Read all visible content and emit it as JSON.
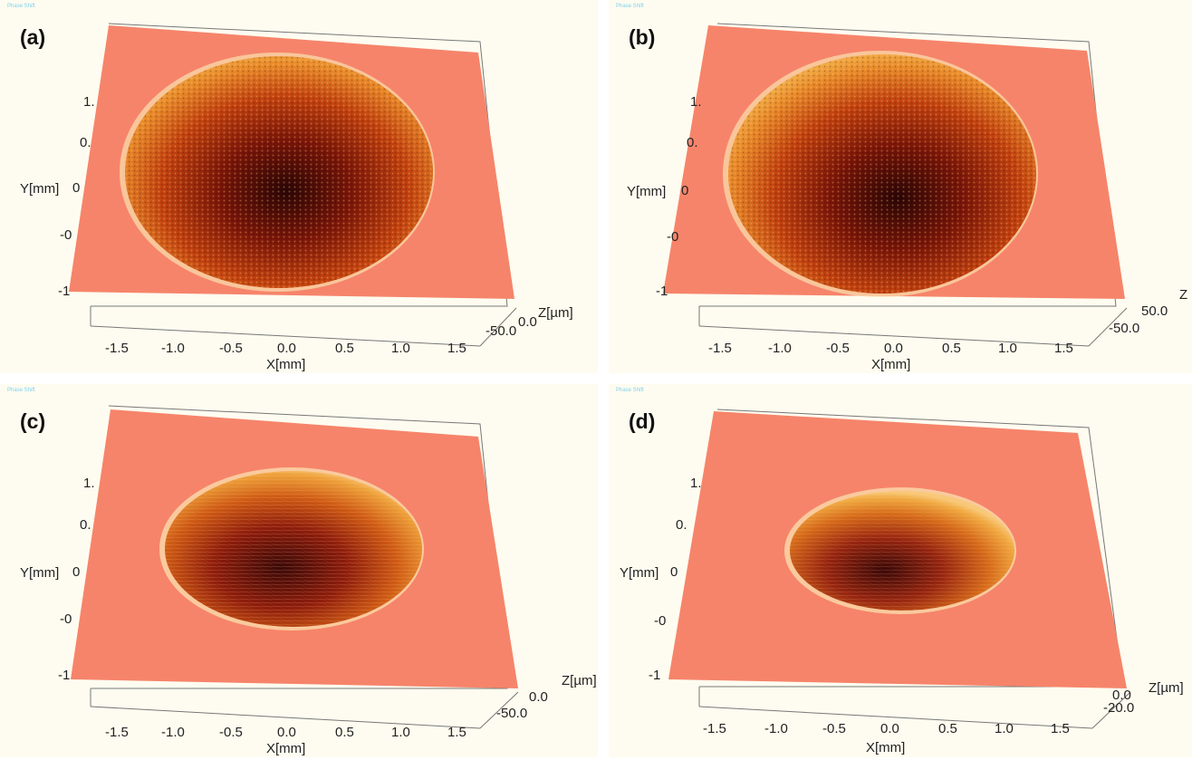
{
  "panels": [
    {
      "id": "a",
      "label": "(a)",
      "tag": "Phase Shift",
      "y_ticks": [
        "1.",
        "0.",
        "0",
        "-0",
        "-1"
      ],
      "y_label": "Y[mm]",
      "x_ticks": [
        "-1.5",
        "-1.0",
        "-0.5",
        "0.0",
        "0.5",
        "1.0",
        "1.5"
      ],
      "x_label": "X[mm]",
      "z_ticks": [
        "0.0",
        "-50.0"
      ],
      "z_label": "Z[µm]"
    },
    {
      "id": "b",
      "label": "(b)",
      "tag": "Phase Shift",
      "y_ticks": [
        "1.",
        "0.",
        "0",
        "-0",
        "-1"
      ],
      "y_label": "Y[mm]",
      "x_ticks": [
        "-1.5",
        "-1.0",
        "-0.5",
        "0.0",
        "0.5",
        "1.0",
        "1.5"
      ],
      "x_label": "X[mm]",
      "z_ticks": [
        "50.0",
        "-50.0"
      ],
      "z_label": "Z"
    },
    {
      "id": "c",
      "label": "(c)",
      "tag": "Phase Shift",
      "y_ticks": [
        "1.",
        "0.",
        "0",
        "-0",
        "-1"
      ],
      "y_label": "Y[mm]",
      "x_ticks": [
        "-1.5",
        "-1.0",
        "-0.5",
        "0.0",
        "0.5",
        "1.0",
        "1.5"
      ],
      "x_label": "X[mm]",
      "z_ticks": [
        "0.0",
        "-50.0"
      ],
      "z_label": "Z[µm]"
    },
    {
      "id": "d",
      "label": "(d)",
      "tag": "Phase Shift",
      "y_ticks": [
        "1.",
        "0.",
        "0",
        "-0",
        "-1"
      ],
      "y_label": "Y[mm]",
      "x_ticks": [
        "-1.5",
        "-1.0",
        "-0.5",
        "0.0",
        "0.5",
        "1.0",
        "1.5"
      ],
      "x_label": "X[mm]",
      "z_ticks": [
        "0.0",
        "-20.0"
      ],
      "z_label": "Z[µm]"
    }
  ],
  "colors": {
    "surface": "#f6846a",
    "surface_light": "#fba48c",
    "crater_dark": "#3a0808",
    "crater_mid": "#a3200f",
    "crater_rim": "#f4a33a",
    "background": "#fefcf0"
  }
}
